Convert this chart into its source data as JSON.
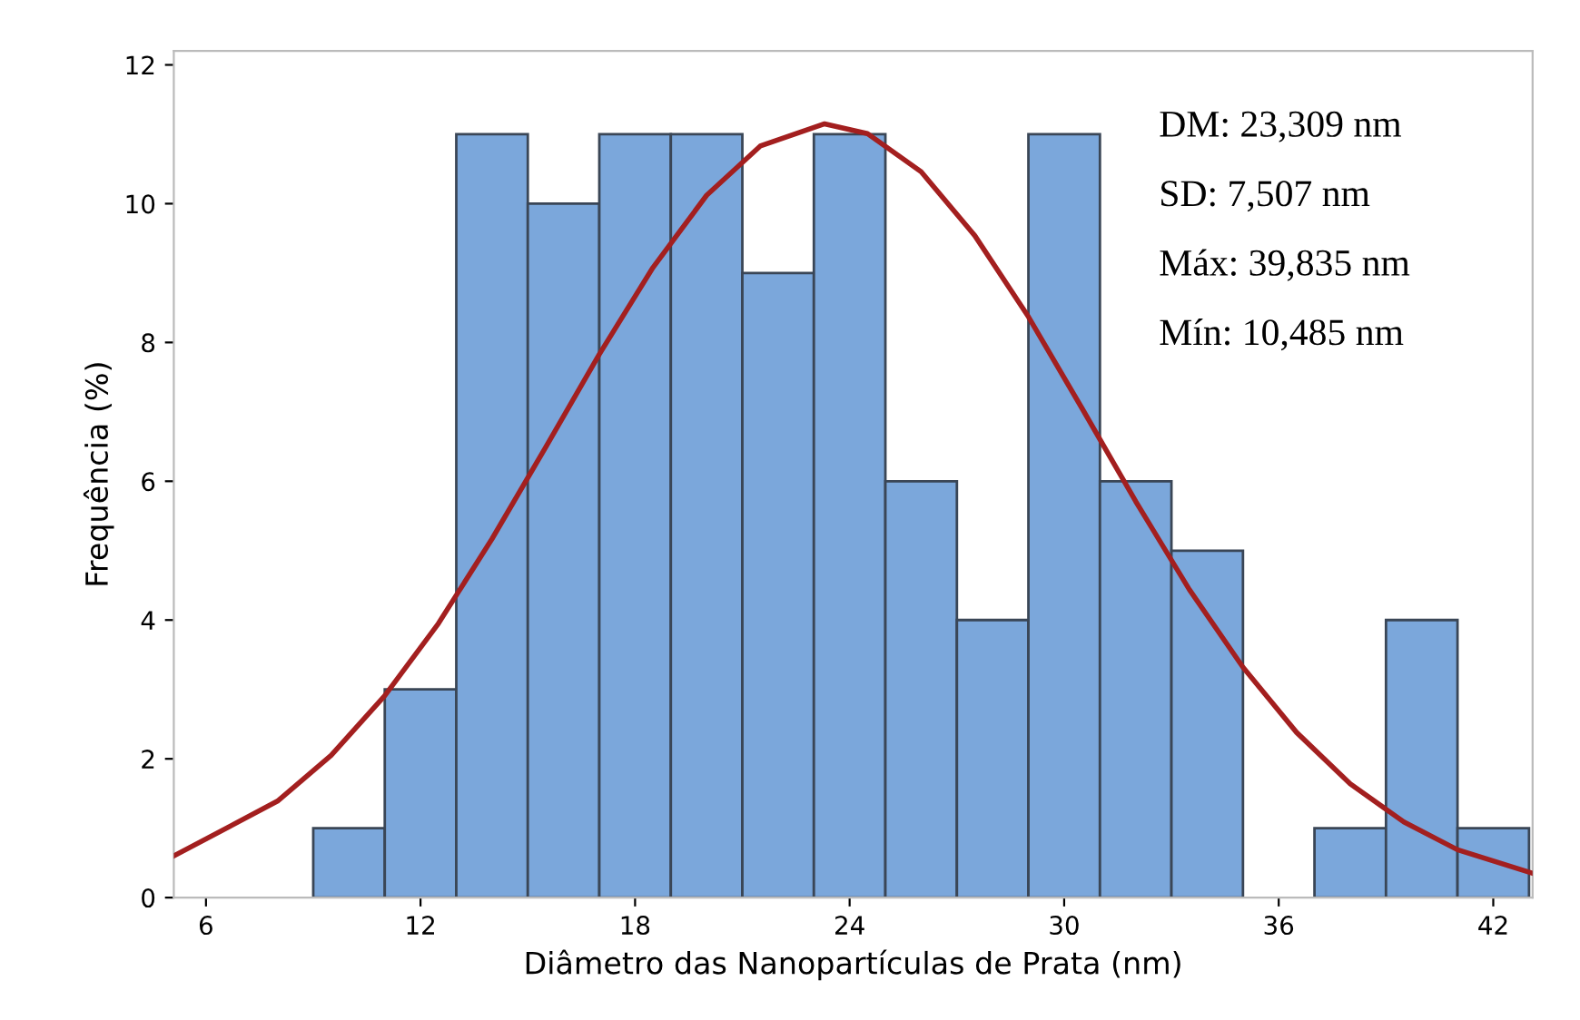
{
  "chart_data": {
    "type": "histogram",
    "xlabel": "Diâmetro das Nanopartículas de Prata (nm)",
    "ylabel": "Frequência (%)",
    "xlim": [
      5.1,
      43.1
    ],
    "xticks": [
      6,
      12,
      18,
      24,
      30,
      36,
      42
    ],
    "ylim": [
      0,
      12.2
    ],
    "yticks": [
      0,
      2,
      4,
      6,
      8,
      10,
      12
    ],
    "grid": false,
    "series": [
      {
        "color": "#7ba7db",
        "bins": [
          9,
          11,
          13,
          15,
          17,
          19,
          21,
          23,
          25,
          27,
          29,
          31,
          33,
          35,
          37,
          39,
          41,
          43
        ],
        "values": [
          1,
          3,
          11,
          10,
          11,
          11,
          9,
          11,
          6,
          4,
          11,
          6,
          5,
          0,
          1,
          4,
          1
        ]
      },
      {
        "type": "line",
        "color": "#a31f1f",
        "x": [
          5.1,
          8,
          9.5,
          11,
          12.5,
          14,
          15.5,
          17,
          18.5,
          20,
          21.5,
          23.3,
          24.5,
          26,
          27.5,
          29,
          30.5,
          32,
          33.5,
          35,
          36.5,
          38,
          39.5,
          41,
          43.1
        ],
        "values": [
          0.6,
          1.39,
          2.05,
          2.91,
          3.95,
          5.17,
          6.49,
          7.83,
          9.08,
          10.12,
          10.83,
          11.15,
          11.01,
          10.46,
          9.54,
          8.37,
          7.05,
          5.71,
          4.44,
          3.32,
          2.38,
          1.64,
          1.09,
          0.69,
          0.35
        ]
      }
    ],
    "annotations": [
      "DM: 23,309 nm",
      "SD: 7,507 nm",
      "Máx: 39,835 nm",
      "Mín: 10,485 nm"
    ]
  }
}
